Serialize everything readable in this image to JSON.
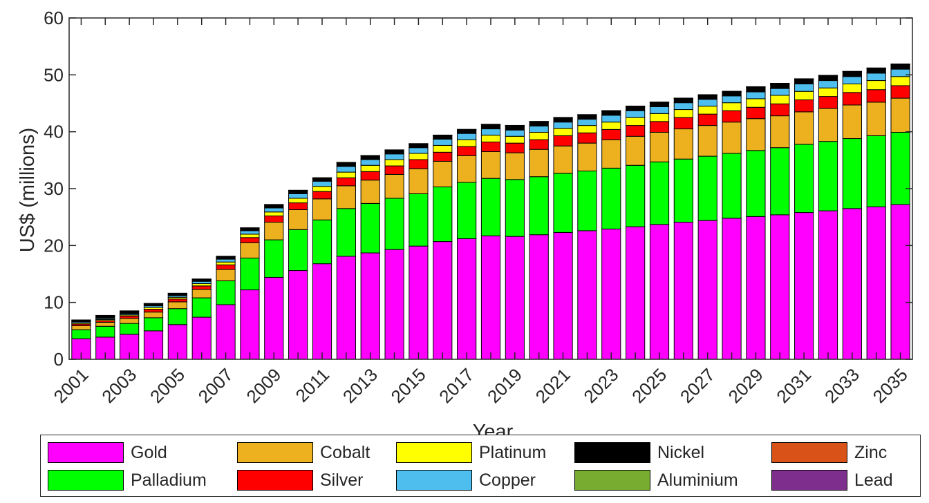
{
  "chart_data": {
    "type": "bar",
    "stacked": true,
    "title": "",
    "xlabel": "Year",
    "ylabel": "US$ (millions)",
    "ylim": [
      0,
      60
    ],
    "yticks": [
      0,
      10,
      20,
      30,
      40,
      50,
      60
    ],
    "xtick_labels": [
      "2001",
      "2003",
      "2005",
      "2007",
      "2009",
      "2011",
      "2013",
      "2015",
      "2017",
      "2019",
      "2021",
      "2023",
      "2025",
      "2027",
      "2029",
      "2031",
      "2033",
      "2035"
    ],
    "categories": [
      "2001",
      "2002",
      "2003",
      "2004",
      "2005",
      "2006",
      "2007",
      "2008",
      "2009",
      "2010",
      "2011",
      "2012",
      "2013",
      "2014",
      "2015",
      "2016",
      "2017",
      "2018",
      "2019",
      "2020",
      "2021",
      "2022",
      "2023",
      "2024",
      "2025",
      "2026",
      "2027",
      "2028",
      "2029",
      "2030",
      "2031",
      "2032",
      "2033",
      "2034",
      "2035"
    ],
    "series": [
      {
        "name": "Gold",
        "color": "#ff00ff",
        "values": [
          3.6,
          3.9,
          4.4,
          5.0,
          6.1,
          7.4,
          9.6,
          12.2,
          14.4,
          15.6,
          16.8,
          18.1,
          18.7,
          19.3,
          19.9,
          20.7,
          21.2,
          21.7,
          21.6,
          21.9,
          22.3,
          22.6,
          22.9,
          23.3,
          23.7,
          24.1,
          24.4,
          24.8,
          25.1,
          25.4,
          25.8,
          26.1,
          26.5,
          26.8,
          27.2
        ]
      },
      {
        "name": "Palladium",
        "color": "#00ff00",
        "values": [
          1.6,
          1.9,
          1.9,
          2.3,
          2.8,
          3.4,
          4.2,
          5.6,
          6.6,
          7.2,
          7.7,
          8.4,
          8.7,
          9.0,
          9.2,
          9.6,
          9.9,
          10.1,
          10.0,
          10.2,
          10.4,
          10.5,
          10.7,
          10.8,
          11.0,
          11.1,
          11.3,
          11.4,
          11.6,
          11.8,
          12.0,
          12.2,
          12.3,
          12.5,
          12.7
        ]
      },
      {
        "name": "Cobalt",
        "color": "#edb120",
        "values": [
          0.7,
          0.7,
          0.9,
          1.0,
          1.2,
          1.5,
          2.0,
          2.7,
          3.1,
          3.5,
          3.7,
          4.0,
          4.1,
          4.2,
          4.4,
          4.5,
          4.7,
          4.7,
          4.7,
          4.8,
          4.8,
          4.9,
          5.0,
          5.1,
          5.2,
          5.3,
          5.4,
          5.5,
          5.6,
          5.6,
          5.7,
          5.8,
          5.9,
          5.9,
          6.0
        ]
      },
      {
        "name": "Silver",
        "color": "#ff0000",
        "values": [
          0.3,
          0.3,
          0.4,
          0.5,
          0.5,
          0.6,
          0.8,
          0.9,
          1.1,
          1.2,
          1.3,
          1.4,
          1.5,
          1.5,
          1.6,
          1.6,
          1.6,
          1.7,
          1.7,
          1.7,
          1.8,
          1.8,
          1.8,
          1.9,
          1.9,
          2.0,
          2.0,
          2.0,
          2.0,
          2.1,
          2.1,
          2.1,
          2.2,
          2.2,
          2.2
        ]
      },
      {
        "name": "Platinum",
        "color": "#ffff00",
        "values": [
          0.2,
          0.2,
          0.2,
          0.3,
          0.3,
          0.4,
          0.5,
          0.6,
          0.7,
          0.8,
          0.9,
          1.0,
          1.1,
          1.1,
          1.1,
          1.2,
          1.2,
          1.2,
          1.2,
          1.3,
          1.3,
          1.3,
          1.3,
          1.4,
          1.4,
          1.4,
          1.4,
          1.4,
          1.5,
          1.5,
          1.5,
          1.5,
          1.5,
          1.6,
          1.6
        ]
      },
      {
        "name": "Copper",
        "color": "#4dbeee",
        "values": [
          0.2,
          0.2,
          0.2,
          0.3,
          0.3,
          0.4,
          0.5,
          0.6,
          0.7,
          0.8,
          0.9,
          1.0,
          1.0,
          1.0,
          1.0,
          1.1,
          1.1,
          1.1,
          1.1,
          1.1,
          1.1,
          1.1,
          1.2,
          1.2,
          1.2,
          1.2,
          1.2,
          1.2,
          1.2,
          1.2,
          1.3,
          1.3,
          1.3,
          1.3,
          1.3
        ]
      },
      {
        "name": "Nickel",
        "color": "#000000",
        "values": [
          0.2,
          0.4,
          0.4,
          0.3,
          0.3,
          0.3,
          0.4,
          0.4,
          0.5,
          0.5,
          0.5,
          0.6,
          0.6,
          0.6,
          0.6,
          0.6,
          0.6,
          0.7,
          0.7,
          0.7,
          0.7,
          0.7,
          0.7,
          0.7,
          0.7,
          0.7,
          0.7,
          0.7,
          0.8,
          0.8,
          0.8,
          0.8,
          0.8,
          0.8,
          0.8
        ]
      },
      {
        "name": "Zinc",
        "color": "#d95319",
        "values": [
          0.05,
          0.05,
          0.05,
          0.05,
          0.05,
          0.05,
          0.05,
          0.05,
          0.05,
          0.05,
          0.05,
          0.05,
          0.05,
          0.05,
          0.05,
          0.05,
          0.05,
          0.05,
          0.05,
          0.05,
          0.05,
          0.05,
          0.05,
          0.05,
          0.05,
          0.05,
          0.05,
          0.05,
          0.05,
          0.05,
          0.05,
          0.05,
          0.05,
          0.05,
          0.05
        ]
      },
      {
        "name": "Aluminium",
        "color": "#77ac30",
        "values": [
          0.05,
          0.05,
          0.05,
          0.05,
          0.05,
          0.05,
          0.05,
          0.05,
          0.05,
          0.05,
          0.05,
          0.05,
          0.05,
          0.05,
          0.05,
          0.05,
          0.05,
          0.05,
          0.05,
          0.05,
          0.05,
          0.05,
          0.05,
          0.05,
          0.05,
          0.05,
          0.05,
          0.05,
          0.05,
          0.05,
          0.05,
          0.05,
          0.05,
          0.05,
          0.05
        ]
      },
      {
        "name": "Lead",
        "color": "#7e2f8e",
        "values": [
          0.02,
          0.02,
          0.02,
          0.02,
          0.02,
          0.02,
          0.02,
          0.02,
          0.02,
          0.02,
          0.02,
          0.02,
          0.02,
          0.02,
          0.02,
          0.02,
          0.02,
          0.02,
          0.02,
          0.02,
          0.02,
          0.02,
          0.02,
          0.02,
          0.02,
          0.02,
          0.02,
          0.02,
          0.02,
          0.02,
          0.02,
          0.02,
          0.02,
          0.02,
          0.02
        ]
      }
    ],
    "legend": {
      "placement": "bottom",
      "columns": 5,
      "order": [
        "Gold",
        "Cobalt",
        "Platinum",
        "Nickel",
        "Zinc",
        "Palladium",
        "Silver",
        "Copper",
        "Aluminium",
        "Lead"
      ]
    }
  }
}
